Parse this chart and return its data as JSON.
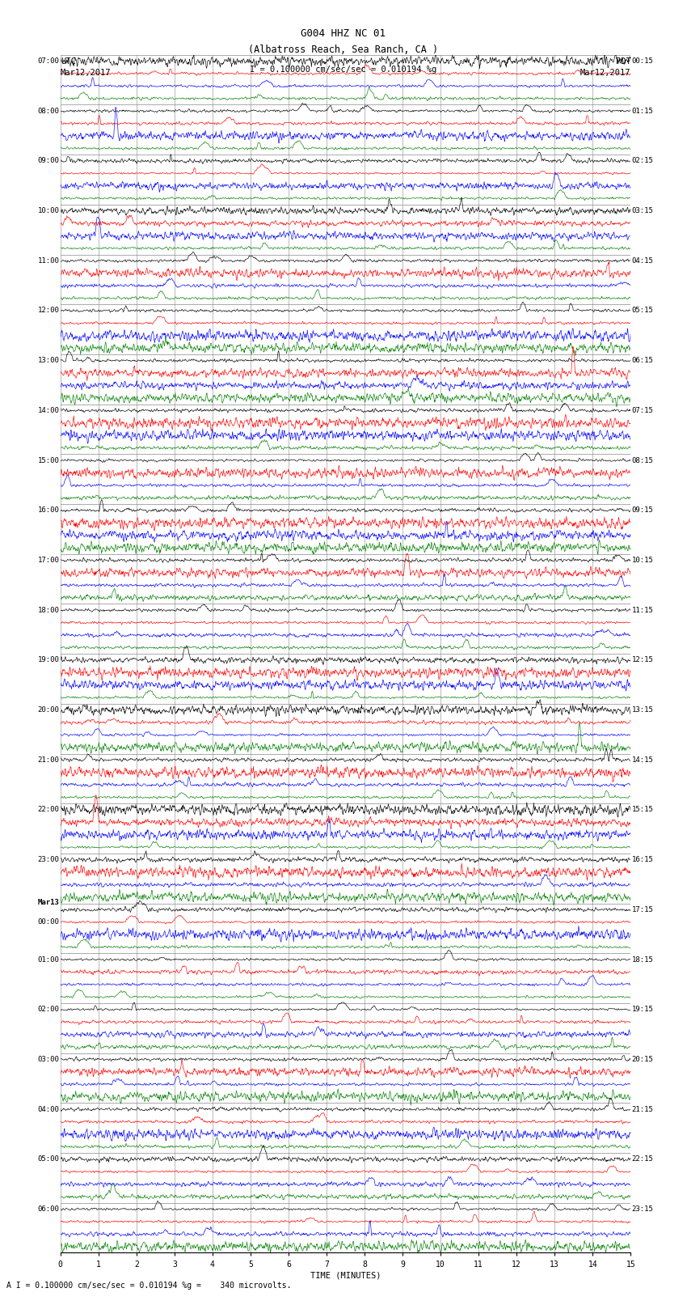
{
  "title_line1": "G004 HHZ NC 01",
  "title_line2": "(Albatross Reach, Sea Ranch, CA )",
  "scale_text": "I = 0.100000 cm/sec/sec = 0.010194 %g",
  "footer_text": "A I = 0.100000 cm/sec/sec = 0.010194 %g =    340 microvolts.",
  "left_label": "UTC",
  "right_label": "PDT",
  "left_date": "Mar12,2017",
  "right_date": "Mar12,2017",
  "xlabel": "TIME (MINUTES)",
  "xmin": 0,
  "xmax": 15,
  "xticks": [
    0,
    1,
    2,
    3,
    4,
    5,
    6,
    7,
    8,
    9,
    10,
    11,
    12,
    13,
    14,
    15
  ],
  "background_color": "#ffffff",
  "trace_colors": [
    "#000000",
    "#ff0000",
    "#0000ff",
    "#008000"
  ],
  "left_times": [
    "07:00",
    "",
    "",
    "",
    "08:00",
    "",
    "",
    "",
    "09:00",
    "",
    "",
    "",
    "10:00",
    "",
    "",
    "",
    "11:00",
    "",
    "",
    "",
    "12:00",
    "",
    "",
    "",
    "13:00",
    "",
    "",
    "",
    "14:00",
    "",
    "",
    "",
    "15:00",
    "",
    "",
    "",
    "16:00",
    "",
    "",
    "",
    "17:00",
    "",
    "",
    "",
    "18:00",
    "",
    "",
    "",
    "19:00",
    "",
    "",
    "",
    "20:00",
    "",
    "",
    "",
    "21:00",
    "",
    "",
    "",
    "22:00",
    "",
    "",
    "",
    "23:00",
    "",
    "",
    "",
    "Mar13",
    "00:00",
    "",
    "",
    "01:00",
    "",
    "",
    "",
    "02:00",
    "",
    "",
    "",
    "03:00",
    "",
    "",
    "",
    "04:00",
    "",
    "",
    "",
    "05:00",
    "",
    "",
    "",
    "06:00",
    "",
    "",
    ""
  ],
  "right_times": [
    "00:15",
    "",
    "",
    "",
    "01:15",
    "",
    "",
    "",
    "02:15",
    "",
    "",
    "",
    "03:15",
    "",
    "",
    "",
    "04:15",
    "",
    "",
    "",
    "05:15",
    "",
    "",
    "",
    "06:15",
    "",
    "",
    "",
    "07:15",
    "",
    "",
    "",
    "08:15",
    "",
    "",
    "",
    "09:15",
    "",
    "",
    "",
    "10:15",
    "",
    "",
    "",
    "11:15",
    "",
    "",
    "",
    "12:15",
    "",
    "",
    "",
    "13:15",
    "",
    "",
    "",
    "14:15",
    "",
    "",
    "",
    "15:15",
    "",
    "",
    "",
    "16:15",
    "",
    "",
    "",
    "17:15",
    "",
    "",
    "",
    "18:15",
    "",
    "",
    "",
    "19:15",
    "",
    "",
    "",
    "20:15",
    "",
    "",
    "",
    "21:15",
    "",
    "",
    "",
    "22:15",
    "",
    "",
    "",
    "23:15",
    "",
    "",
    ""
  ],
  "mar13_row": 64
}
